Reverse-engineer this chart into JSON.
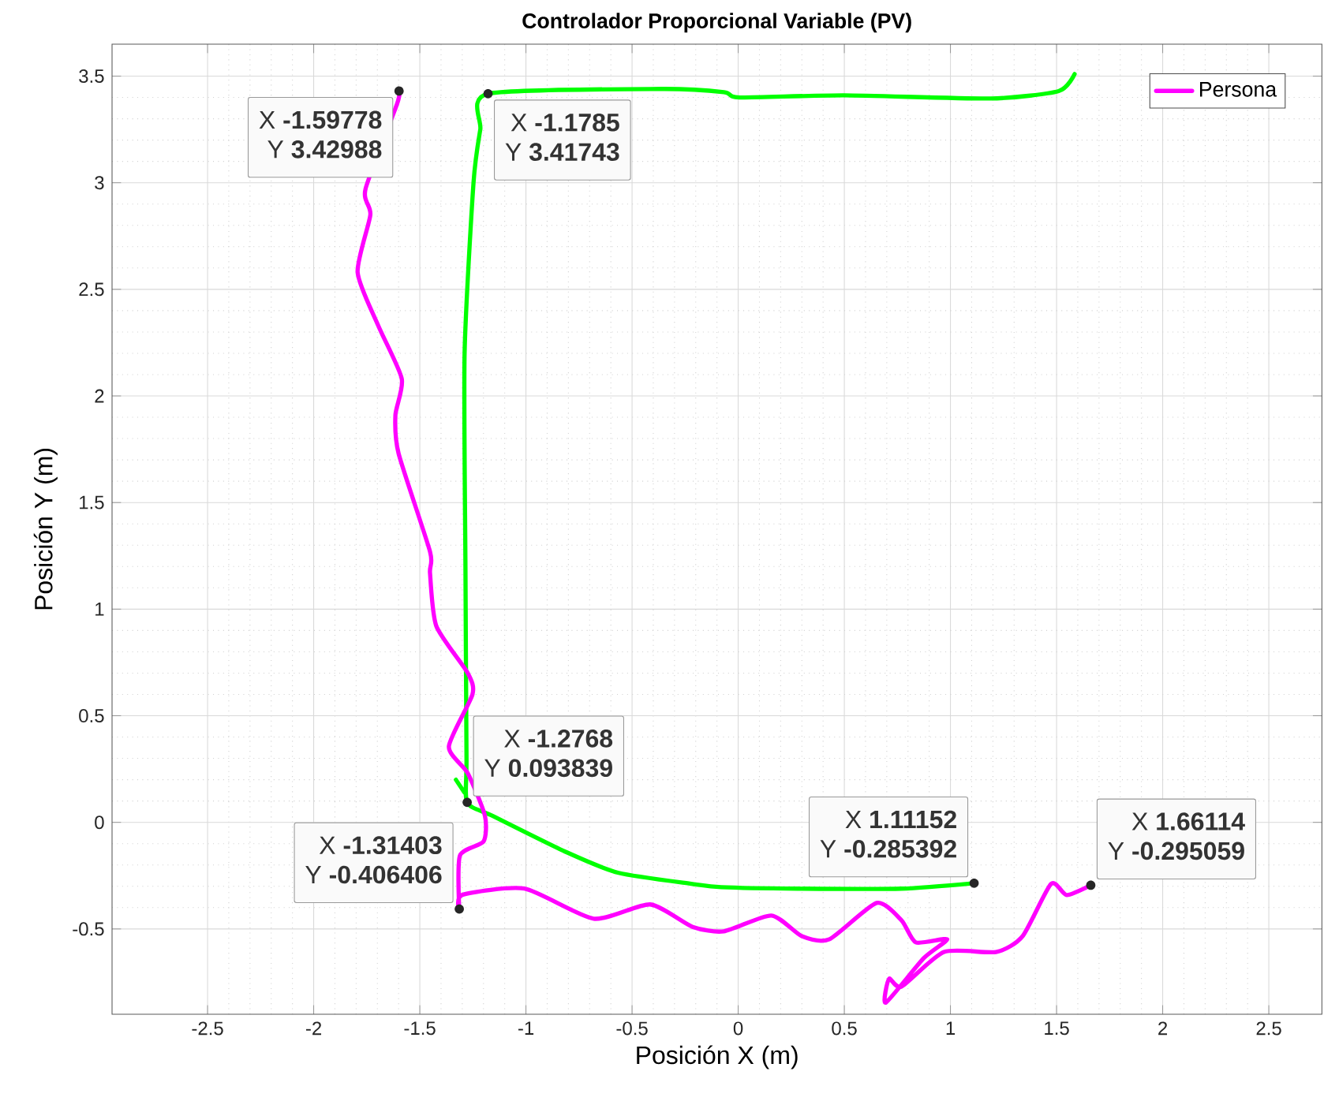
{
  "chart_data": {
    "type": "line",
    "title": "Controlador Proporcional Variable (PV)",
    "xlabel": "Posición X (m)",
    "ylabel": "Posición Y (m)",
    "xlim": [
      -2.95,
      2.75
    ],
    "ylim": [
      -0.9,
      3.65
    ],
    "xticks": [
      -2.5,
      -2,
      -1.5,
      -1,
      -0.5,
      0,
      0.5,
      1,
      1.5,
      2,
      2.5
    ],
    "yticks": [
      -0.5,
      0,
      0.5,
      1,
      1.5,
      2,
      2.5,
      3,
      3.5
    ],
    "grid": true,
    "legend": "top right",
    "series": [
      {
        "color": "#00ff00",
        "x": [
          -1.33,
          -1.29,
          null,
          1.11152,
          0.77,
          0.28,
          -0.08,
          -0.215,
          -0.563,
          -0.807,
          -1.156,
          -1.2768,
          -1.28,
          -1.285,
          -1.289,
          -1.247,
          -1.215,
          -1.1785,
          -0.363,
          -0.067,
          0.007,
          0.5,
          1.19,
          1.51,
          1.585
        ],
        "values": [
          0.2,
          0.14,
          null,
          -0.285392,
          -0.311,
          -0.311,
          -0.304,
          -0.289,
          -0.237,
          -0.141,
          0.03,
          0.093839,
          0.3,
          1.2,
          2.2,
          3.0,
          3.25,
          3.41743,
          3.44,
          3.425,
          3.4,
          3.41,
          3.395,
          3.43,
          3.51
        ]
      },
      {
        "name": "Persona",
        "color": "#ff00ff",
        "x": [
          -1.59778,
          -1.607,
          -1.756,
          -1.733,
          -1.793,
          -1.696,
          -1.585,
          -1.615,
          -1.6,
          -1.452,
          -1.452,
          -1.422,
          -1.274,
          -1.252,
          -1.363,
          -1.274,
          -1.193,
          -1.2,
          -1.311,
          -1.31403,
          -1.3,
          -1.007,
          -0.681,
          -0.415,
          -0.215,
          -0.067,
          0.156,
          0.3,
          0.43,
          0.652,
          0.77,
          0.837,
          0.985,
          0.874,
          0.696,
          0.711,
          0.77,
          0.97,
          1.215,
          1.34,
          1.474,
          1.548,
          1.66114
        ],
        "values": [
          3.42988,
          3.37,
          2.97,
          2.85,
          2.58,
          2.33,
          2.08,
          1.91,
          1.73,
          1.27,
          1.17,
          0.92,
          0.7,
          0.6,
          0.356,
          0.23,
          0.03,
          -0.09,
          -0.156,
          -0.406406,
          -0.34,
          -0.311,
          -0.452,
          -0.385,
          -0.49,
          -0.511,
          -0.437,
          -0.534,
          -0.548,
          -0.378,
          -0.46,
          -0.563,
          -0.548,
          -0.637,
          -0.845,
          -0.734,
          -0.77,
          -0.608,
          -0.608,
          -0.534,
          -0.289,
          -0.341,
          -0.295059
        ]
      }
    ],
    "annotations": [
      {
        "text": "X **-1.59778**",
        "x": -1.59778,
        "y": 3.42988
      },
      "Y **3.42988**",
      {
        "text": "X **-1.1785**",
        "x": -1.1785,
        "y": 3.41743
      },
      "Y **3.41743**",
      {
        "text": "X **-1.2768**",
        "x": -1.2768,
        "y": 0.093839
      },
      "Y **0.093839**",
      {
        "text": "X **-1.31403**",
        "x": -1.31403,
        "y": -0.406406
      },
      "Y **-0.406406**",
      {
        "text": "X **1.11152**",
        "x": 1.11152,
        "y": -0.285392
      },
      "Y **-0.285392**",
      {
        "text": "X **1.66114**",
        "x": 1.66114,
        "y": -0.295059
      },
      "Y **-0.295059**"
    ]
  }
}
